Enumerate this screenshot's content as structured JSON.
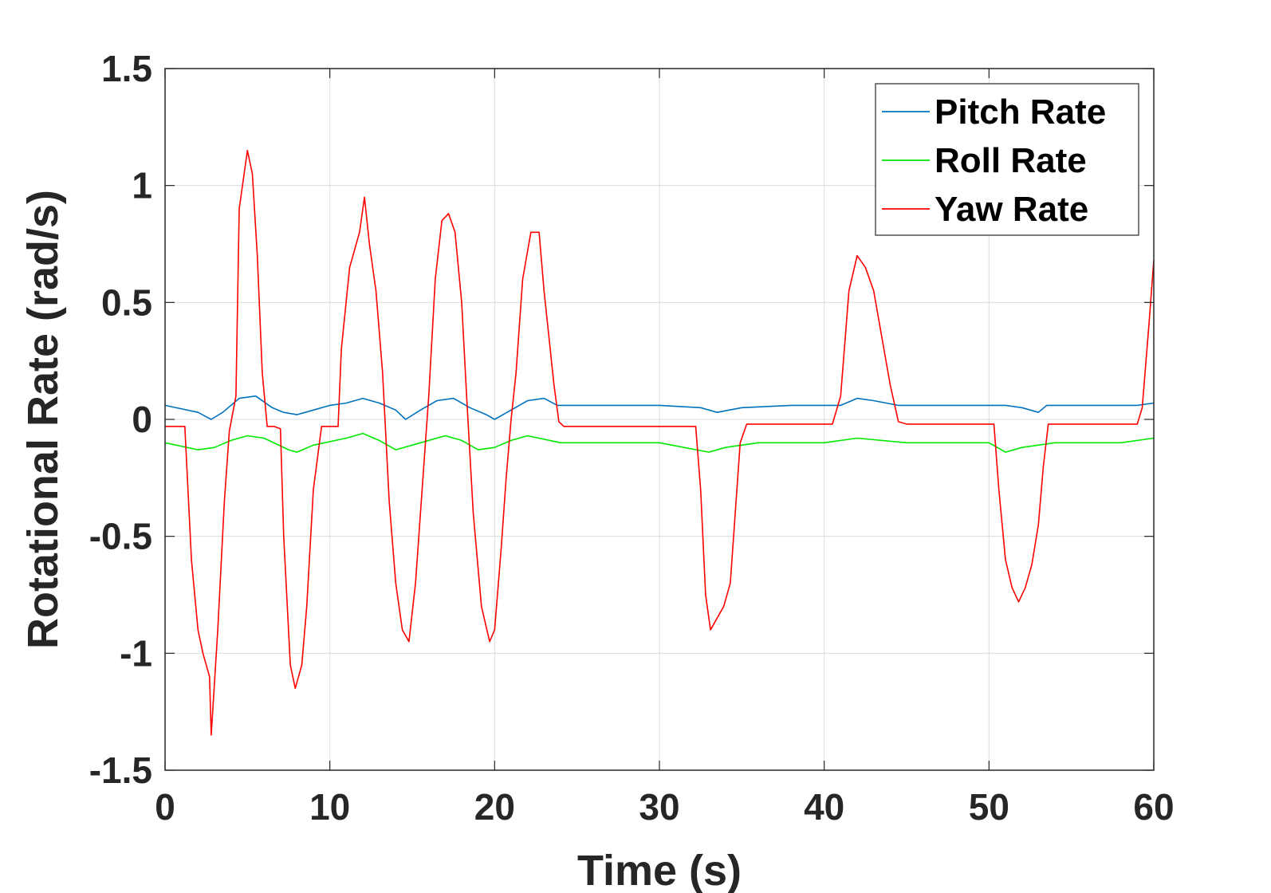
{
  "chart_data": {
    "type": "line",
    "title": "",
    "xlabel": "Time (s)",
    "ylabel": "Rotational Rate (rad/s)",
    "xlim": [
      0,
      60
    ],
    "ylim": [
      -1.5,
      1.5
    ],
    "xticks": [
      0,
      10,
      20,
      30,
      40,
      50,
      60
    ],
    "xtick_labels": [
      "0",
      "10",
      "20",
      "30",
      "40",
      "50",
      "60"
    ],
    "yticks": [
      1.5,
      1,
      0.5,
      0,
      -0.5,
      -1,
      -1.5
    ],
    "ytick_labels": [
      "1.5",
      "1",
      "0.5",
      "0",
      "-0.5",
      "-1",
      "-1.5"
    ],
    "grid": true,
    "legend_position": "top-right",
    "series": [
      {
        "name": "Pitch Rate",
        "color": "#0072BD",
        "x": [
          0,
          2,
          2.8,
          3.5,
          4.5,
          5.5,
          6.5,
          7.2,
          8,
          9,
          10,
          11,
          12,
          13,
          14,
          14.6,
          15.5,
          16.5,
          17.5,
          18.5,
          19.5,
          20,
          21,
          22,
          23,
          23.8,
          26,
          30,
          32.5,
          33.5,
          35,
          38,
          41,
          42,
          43,
          44.5,
          47,
          50,
          51,
          52,
          53,
          53.5,
          56,
          59,
          60
        ],
        "values": [
          0.06,
          0.03,
          0.0,
          0.03,
          0.09,
          0.1,
          0.05,
          0.03,
          0.02,
          0.04,
          0.06,
          0.07,
          0.09,
          0.07,
          0.04,
          0.0,
          0.04,
          0.08,
          0.09,
          0.05,
          0.02,
          0.0,
          0.04,
          0.08,
          0.09,
          0.06,
          0.06,
          0.06,
          0.05,
          0.03,
          0.05,
          0.06,
          0.06,
          0.09,
          0.08,
          0.06,
          0.06,
          0.06,
          0.06,
          0.05,
          0.03,
          0.06,
          0.06,
          0.06,
          0.07
        ]
      },
      {
        "name": "Roll Rate",
        "color": "#00E800",
        "x": [
          0,
          2,
          3,
          4,
          5,
          6,
          7.5,
          8,
          9,
          11,
          12,
          13,
          14,
          15,
          17,
          18,
          19,
          20,
          21,
          22,
          24,
          30,
          33,
          34,
          36,
          40,
          42,
          45,
          50,
          51,
          52,
          54,
          58,
          60
        ],
        "values": [
          -0.1,
          -0.13,
          -0.12,
          -0.09,
          -0.07,
          -0.08,
          -0.13,
          -0.14,
          -0.11,
          -0.08,
          -0.06,
          -0.09,
          -0.13,
          -0.11,
          -0.07,
          -0.09,
          -0.13,
          -0.12,
          -0.09,
          -0.07,
          -0.1,
          -0.1,
          -0.14,
          -0.12,
          -0.1,
          -0.1,
          -0.08,
          -0.1,
          -0.1,
          -0.14,
          -0.12,
          -0.1,
          -0.1,
          -0.08
        ]
      },
      {
        "name": "Yaw Rate",
        "color": "#FF0000",
        "x": [
          0,
          1.2,
          1.6,
          2.0,
          2.3,
          2.7,
          2.8,
          3.2,
          3.6,
          3.9,
          4.3,
          4.5,
          5.0,
          5.3,
          5.6,
          5.9,
          6.2,
          6.6,
          7.0,
          7.2,
          7.6,
          7.9,
          8.3,
          8.6,
          9.0,
          9.5,
          10.5,
          10.7,
          11.2,
          11.8,
          12.1,
          12.4,
          12.8,
          13.2,
          13.6,
          14.0,
          14.4,
          14.8,
          15.2,
          15.6,
          16.0,
          16.4,
          16.8,
          17.2,
          17.6,
          18.0,
          18.3,
          18.7,
          19.2,
          19.7,
          20.0,
          20.4,
          20.7,
          21.0,
          21.3,
          21.7,
          22.2,
          22.7,
          23.0,
          23.3,
          23.6,
          23.9,
          24.2,
          26,
          30,
          32.2,
          32.5,
          32.8,
          33.1,
          33.5,
          33.9,
          34.3,
          34.6,
          34.9,
          35.3,
          38,
          40.5,
          41.0,
          41.5,
          42.0,
          42.5,
          43.0,
          43.5,
          44.0,
          44.5,
          45.0,
          48,
          50.3,
          50.6,
          51.0,
          51.4,
          51.8,
          52.2,
          52.6,
          53.0,
          53.3,
          53.6,
          56,
          59.0,
          59.3,
          59.7,
          60.0
        ],
        "values": [
          -0.03,
          -0.03,
          -0.6,
          -0.9,
          -1.0,
          -1.1,
          -1.35,
          -0.9,
          -0.35,
          -0.05,
          0.1,
          0.9,
          1.15,
          1.05,
          0.7,
          0.2,
          -0.03,
          -0.03,
          -0.04,
          -0.5,
          -1.05,
          -1.15,
          -1.05,
          -0.8,
          -0.3,
          -0.03,
          -0.03,
          0.3,
          0.65,
          0.8,
          0.95,
          0.75,
          0.55,
          0.2,
          -0.35,
          -0.7,
          -0.9,
          -0.95,
          -0.7,
          -0.3,
          0.1,
          0.6,
          0.85,
          0.88,
          0.8,
          0.5,
          0.1,
          -0.4,
          -0.8,
          -0.95,
          -0.9,
          -0.55,
          -0.25,
          0.0,
          0.2,
          0.6,
          0.8,
          0.8,
          0.55,
          0.35,
          0.15,
          -0.01,
          -0.03,
          -0.03,
          -0.03,
          -0.03,
          -0.3,
          -0.75,
          -0.9,
          -0.85,
          -0.8,
          -0.7,
          -0.4,
          -0.1,
          -0.02,
          -0.02,
          -0.02,
          0.1,
          0.55,
          0.7,
          0.65,
          0.55,
          0.35,
          0.15,
          -0.01,
          -0.02,
          -0.02,
          -0.02,
          -0.3,
          -0.6,
          -0.72,
          -0.78,
          -0.72,
          -0.62,
          -0.45,
          -0.2,
          -0.02,
          -0.02,
          -0.02,
          0.05,
          0.4,
          0.68
        ]
      }
    ]
  }
}
